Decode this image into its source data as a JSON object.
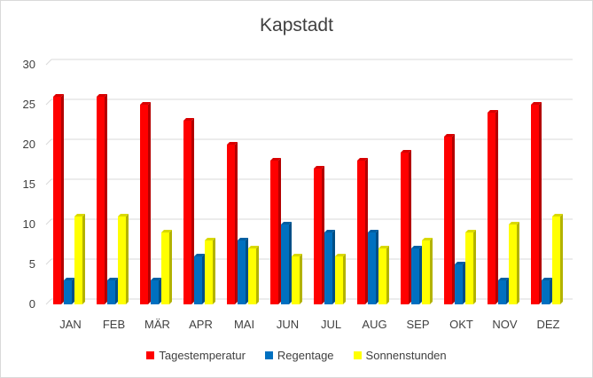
{
  "chart_data": {
    "type": "bar",
    "title": "Kapstadt",
    "categories": [
      "JAN",
      "FEB",
      "MÄR",
      "APR",
      "MAI",
      "JUN",
      "JUL",
      "AUG",
      "SEP",
      "OKT",
      "NOV",
      "DEZ"
    ],
    "series": [
      {
        "name": "Tagestemperatur",
        "color": "#ff0000",
        "values": [
          26,
          26,
          25,
          23,
          20,
          18,
          17,
          18,
          19,
          21,
          24,
          25
        ]
      },
      {
        "name": "Regentage",
        "color": "#0070c0",
        "values": [
          3,
          3,
          3,
          6,
          8,
          10,
          9,
          9,
          7,
          5,
          3,
          3
        ]
      },
      {
        "name": "Sonnenstunden",
        "color": "#ffff00",
        "values": [
          11,
          11,
          9,
          8,
          7,
          6,
          6,
          7,
          8,
          9,
          10,
          11
        ]
      }
    ],
    "ylim": [
      0,
      30
    ],
    "yticks": [
      0,
      5,
      10,
      15,
      20,
      25,
      30
    ],
    "grid": true,
    "legend_position": "bottom",
    "style": "3d-columns"
  }
}
